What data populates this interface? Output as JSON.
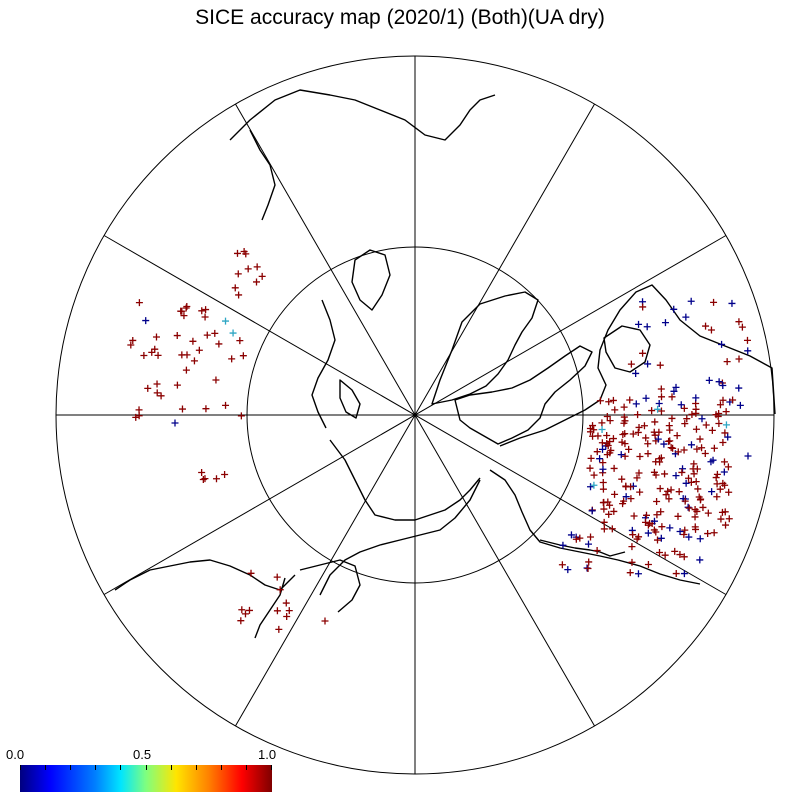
{
  "title": "SICE accuracy map (2020/1) (Both)(UA dry)",
  "colorbar": {
    "labels": [
      "0.0",
      "0.5",
      "1.0"
    ],
    "min": 0.0,
    "max": 1.0,
    "colors": [
      "#00007f",
      "#0000ff",
      "#0080ff",
      "#00e5ff",
      "#7fff7f",
      "#ffe500",
      "#ff8000",
      "#ff0000",
      "#7f0000"
    ]
  },
  "map": {
    "projection": "polar-stereographic",
    "meridian_spacing_deg": 30,
    "inner_latitude_circle": true,
    "marker": "+",
    "marker_colors": {
      "high": "#8b0000",
      "low": "#00008b",
      "mid": "#2ea6c4"
    }
  }
}
